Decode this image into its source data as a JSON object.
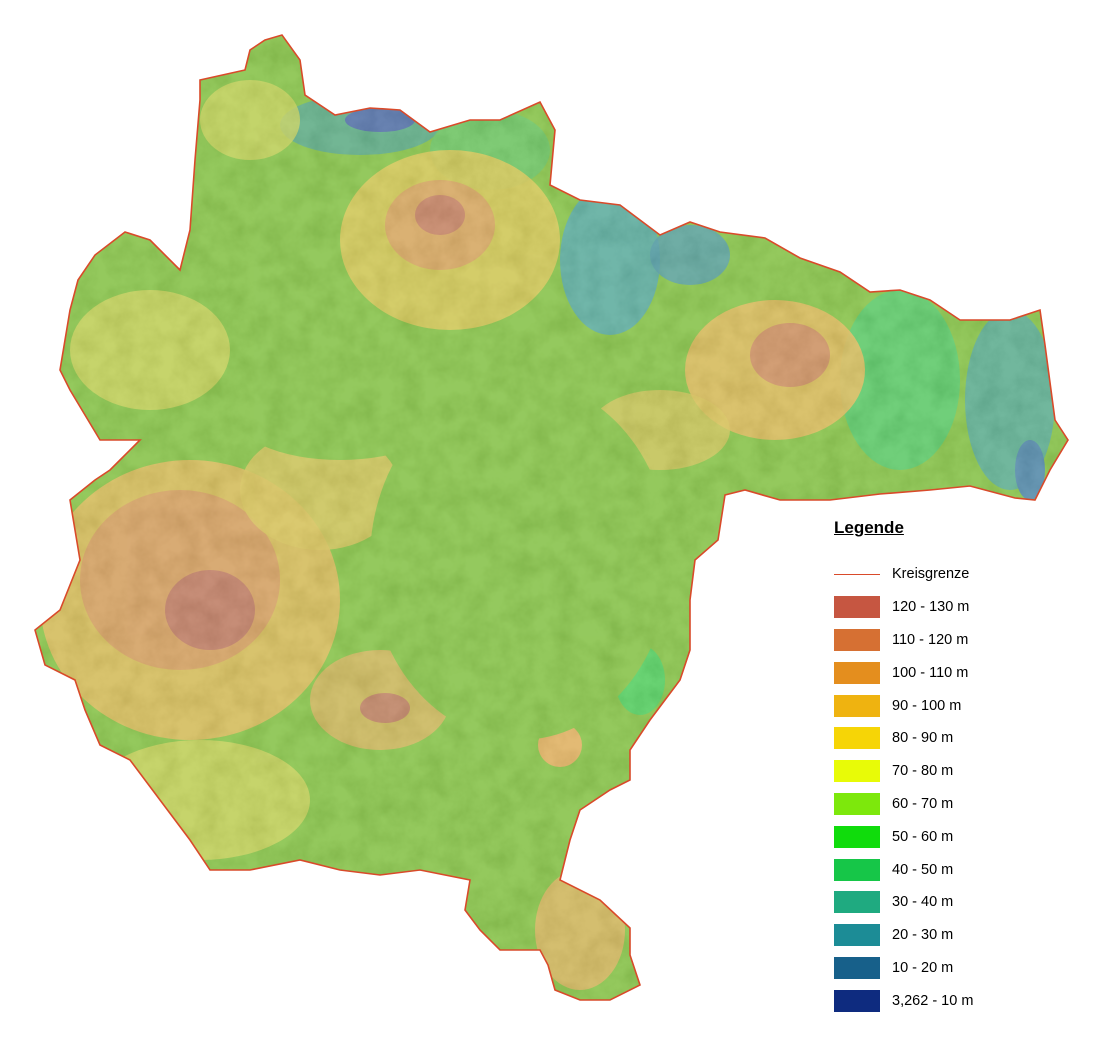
{
  "legend": {
    "title": "Legende",
    "boundary": {
      "label": "Kreisgrenze",
      "color": "#d94a2a"
    },
    "classes": [
      {
        "label": "120 - 130 m",
        "color": "#c65641"
      },
      {
        "label": "110 - 120 m",
        "color": "#d67033"
      },
      {
        "label": "100 - 110 m",
        "color": "#e48e1e"
      },
      {
        "label": "90 - 100 m",
        "color": "#efb310"
      },
      {
        "label": "80 - 90 m",
        "color": "#f6d506"
      },
      {
        "label": "70 - 80 m",
        "color": "#e8fb07"
      },
      {
        "label": "60 - 70 m",
        "color": "#7de80c"
      },
      {
        "label": "50 - 60 m",
        "color": "#10dc0c"
      },
      {
        "label": "40 - 50 m",
        "color": "#16c648"
      },
      {
        "label": "30 - 40 m",
        "color": "#1faa80"
      },
      {
        "label": "20 - 30 m",
        "color": "#1c8c96"
      },
      {
        "label": "10 - 20 m",
        "color": "#17608a"
      },
      {
        "label": "3,262 - 10 m",
        "color": "#0e2b7f"
      }
    ]
  },
  "map": {
    "base_color": "#5bad07",
    "terrain_colors": {
      "low": "#1a6b7c",
      "lowland": "#31a544",
      "plain": "#5bad07",
      "mid": "#b6c021",
      "high": "#d4a524",
      "peak": "#b4632c"
    }
  }
}
